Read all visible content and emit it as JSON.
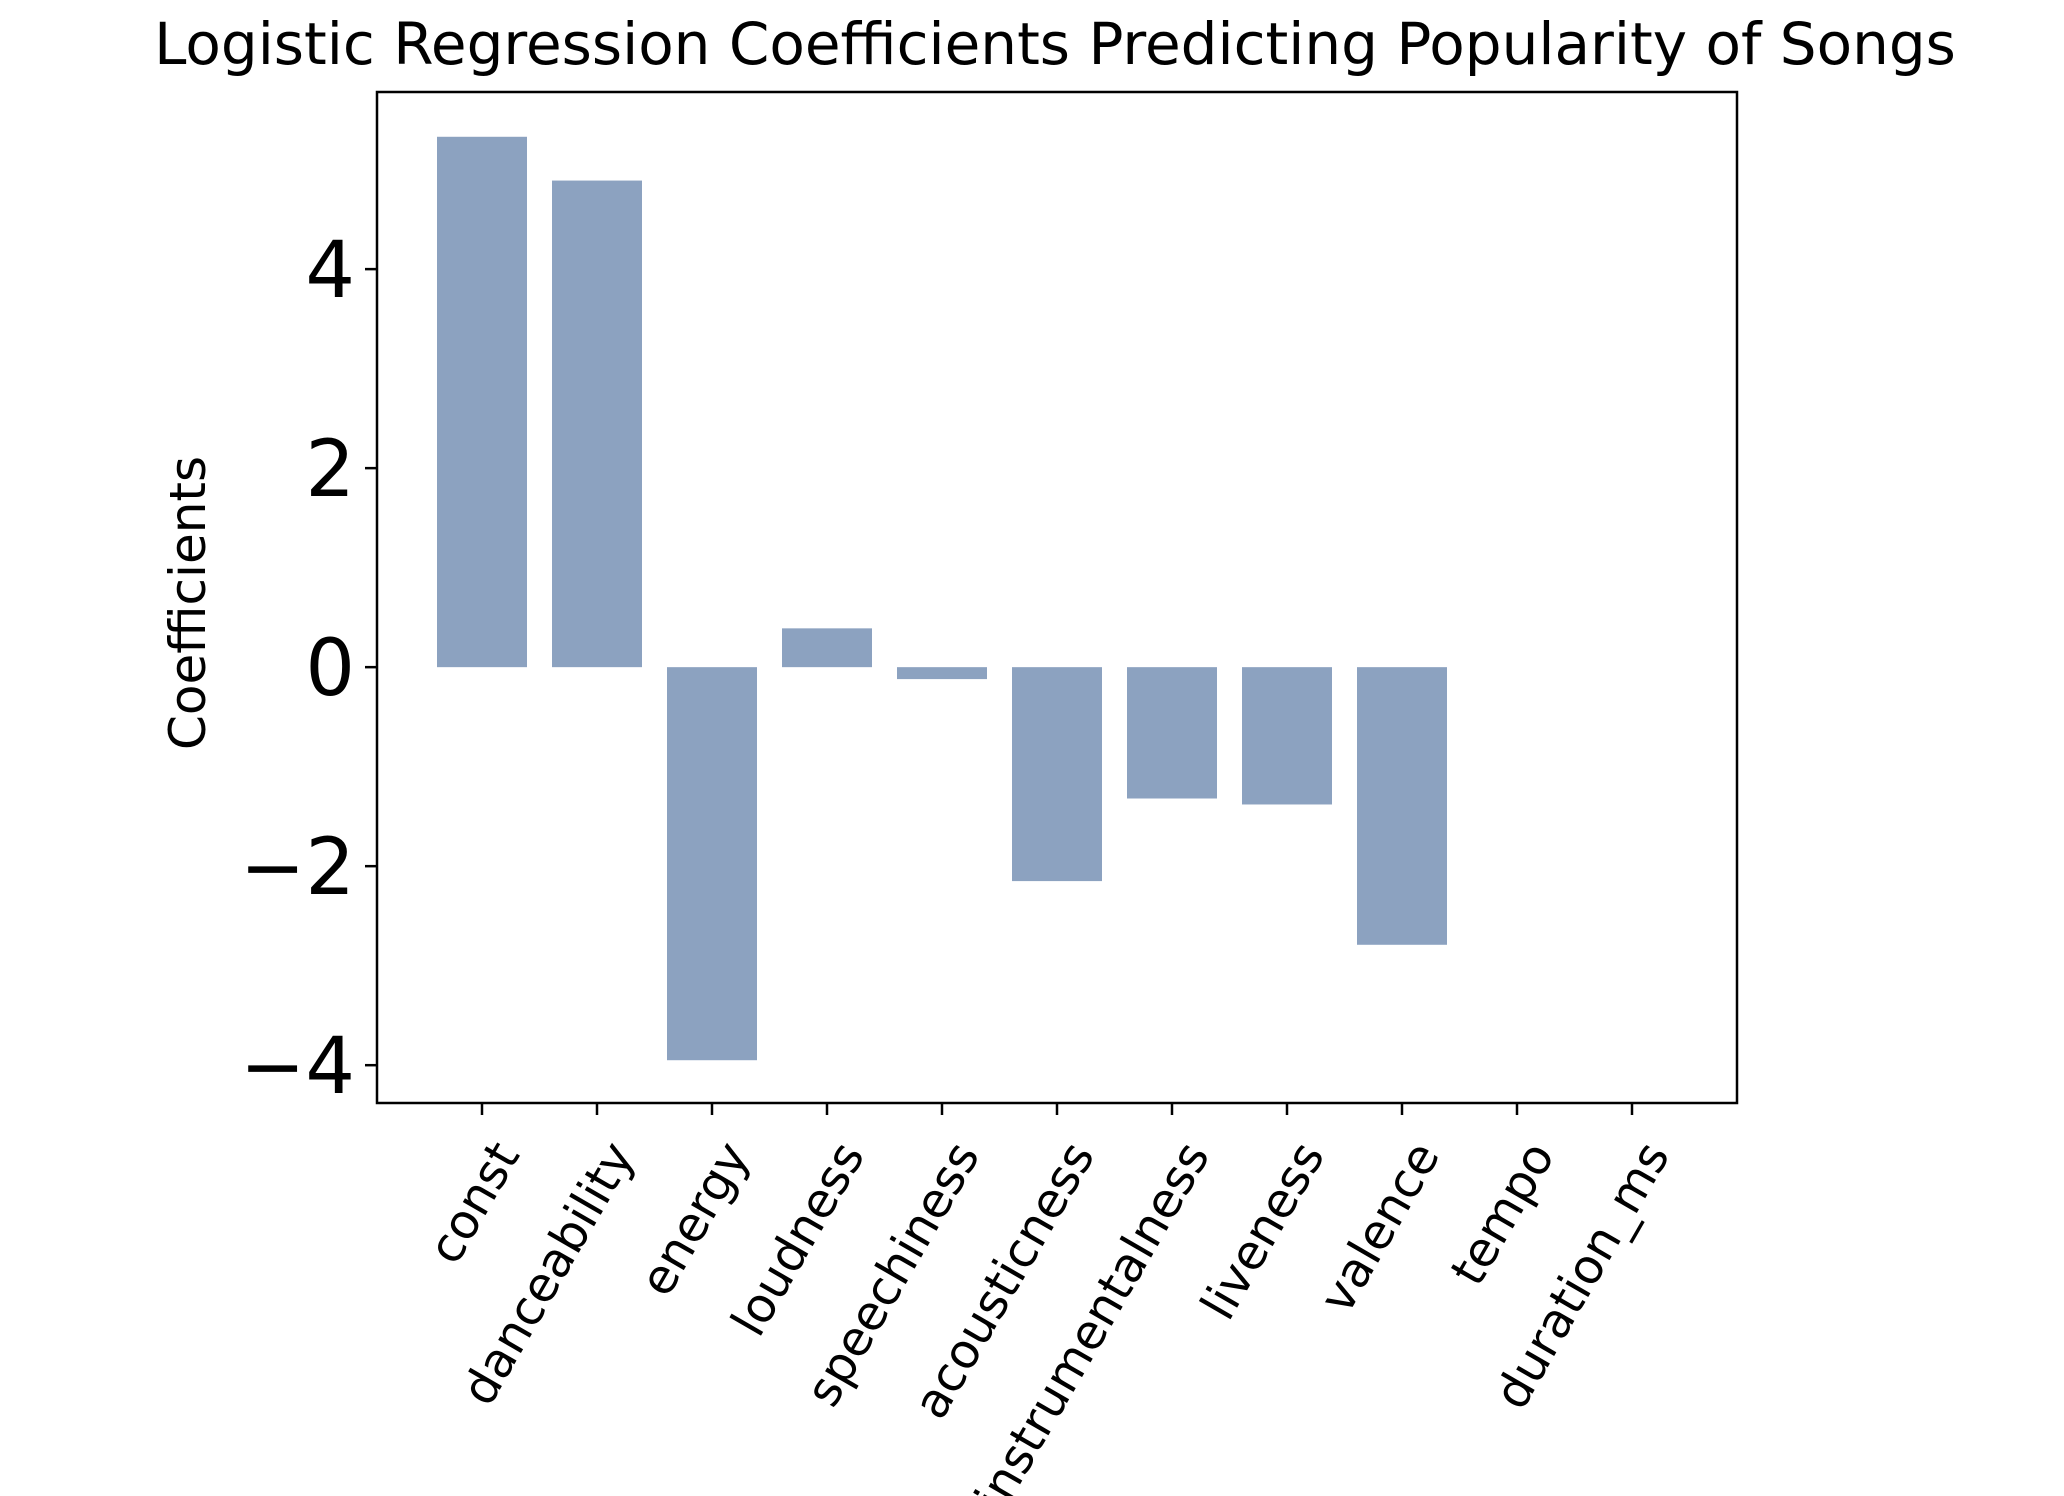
{
  "chart_data": {
    "type": "bar",
    "title": "Logistic Regression Coefficients Predicting Popularity of Songs",
    "xlabel": "",
    "ylabel": "Coefficients",
    "categories": [
      "const",
      "danceability",
      "energy",
      "loudness",
      "speechiness",
      "acousticness",
      "instrumentalness",
      "liveness",
      "valence",
      "tempo",
      "duration_ms"
    ],
    "values": [
      5.33,
      4.89,
      -3.95,
      0.39,
      -0.12,
      -2.15,
      -1.32,
      -1.38,
      -2.79,
      0.0,
      0.0
    ],
    "ylim": [
      -4.38,
      5.78
    ],
    "yticks": [
      -4,
      -2,
      0,
      2,
      4
    ],
    "ytick_labels": [
      "−4",
      "−2",
      "0",
      "2",
      "4"
    ],
    "bar_color": "#8ca2c0",
    "grid": false,
    "legend": "none"
  }
}
